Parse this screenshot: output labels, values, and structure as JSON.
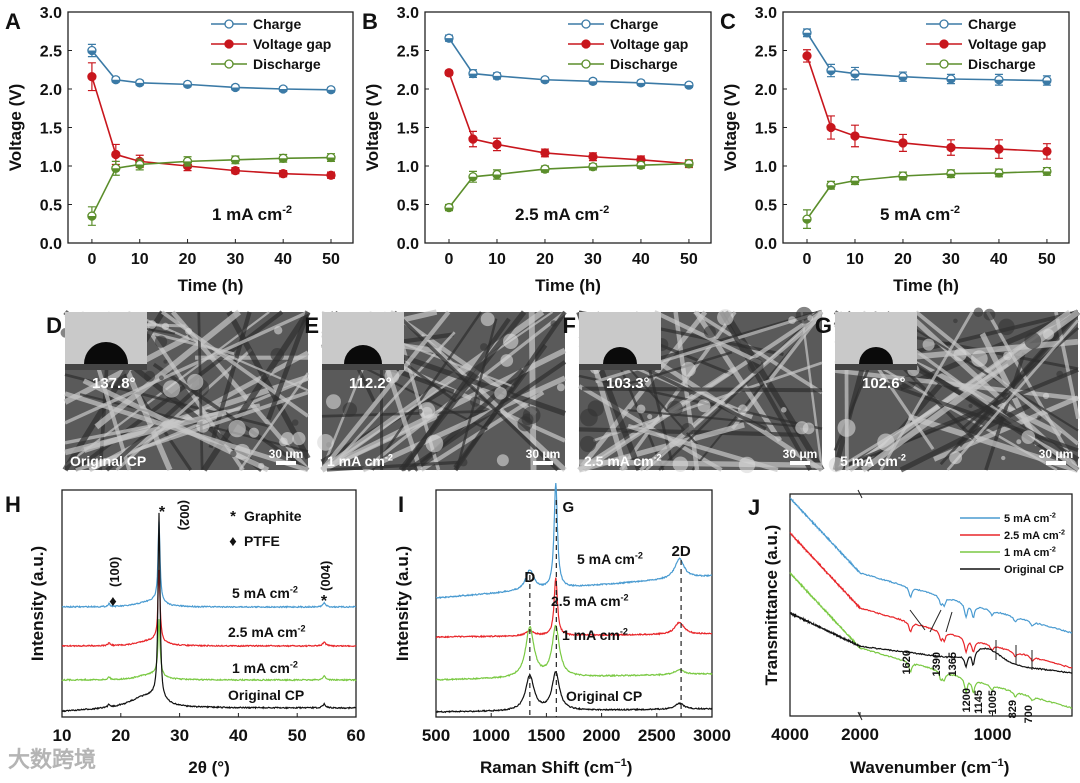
{
  "colors": {
    "charge": "#3b7aa6",
    "gap": "#c8161d",
    "discharge": "#5b8e2b",
    "s5": "#4a9bd1",
    "s25": "#e8262a",
    "s1": "#7ac943",
    "orig": "#111111"
  },
  "chart_data": [
    {
      "panel": "A",
      "type": "line",
      "xlabel": "Time (h)",
      "ylabel": "Voltage (V)",
      "xlim": [
        -5,
        54.6
      ],
      "ylim": [
        0,
        3
      ],
      "xticks": [
        0,
        10,
        20,
        30,
        40,
        50
      ],
      "yticks": [
        "0.0",
        "0.5",
        "1.0",
        "1.5",
        "2.0",
        "2.5",
        "3.0"
      ],
      "condition": "1 mA cm",
      "condition_sup": "-2",
      "x": [
        0,
        5,
        10,
        20,
        30,
        40,
        50
      ],
      "series": [
        {
          "name": "Charge",
          "key": "charge",
          "values": [
            2.5,
            2.12,
            2.08,
            2.06,
            2.02,
            2.0,
            1.99
          ],
          "err": [
            0.08,
            0.03,
            0.03,
            0.03,
            0.03,
            0.03,
            0.03
          ]
        },
        {
          "name": "Voltage gap",
          "key": "gap",
          "values": [
            2.16,
            1.15,
            1.06,
            1.0,
            0.94,
            0.9,
            0.88
          ],
          "err": [
            0.18,
            0.13,
            0.08,
            0.06,
            0.04,
            0.04,
            0.04
          ]
        },
        {
          "name": "Discharge",
          "key": "discharge",
          "values": [
            0.35,
            0.97,
            1.02,
            1.06,
            1.08,
            1.1,
            1.11
          ],
          "err": [
            0.12,
            0.09,
            0.07,
            0.06,
            0.05,
            0.05,
            0.05
          ]
        }
      ],
      "legend": "top-right"
    },
    {
      "panel": "B",
      "type": "line",
      "xlabel": "Time (h)",
      "ylabel": "Voltage (V)",
      "xlim": [
        -5,
        54.6
      ],
      "ylim": [
        0,
        3
      ],
      "xticks": [
        0,
        10,
        20,
        30,
        40,
        50
      ],
      "yticks": [
        "0.0",
        "0.5",
        "1.0",
        "1.5",
        "2.0",
        "2.5",
        "3.0"
      ],
      "condition": "2.5 mA cm",
      "condition_sup": "-2",
      "x": [
        0,
        5,
        10,
        20,
        30,
        40,
        50
      ],
      "series": [
        {
          "name": "Charge",
          "key": "charge",
          "values": [
            2.66,
            2.2,
            2.17,
            2.12,
            2.1,
            2.08,
            2.05
          ],
          "err": [
            0.04,
            0.05,
            0.04,
            0.03,
            0.03,
            0.03,
            0.03
          ]
        },
        {
          "name": "Voltage gap",
          "key": "gap",
          "values": [
            2.21,
            1.35,
            1.28,
            1.17,
            1.12,
            1.08,
            1.03
          ],
          "err": [
            0.03,
            0.1,
            0.08,
            0.05,
            0.05,
            0.05,
            0.05
          ]
        },
        {
          "name": "Discharge",
          "key": "discharge",
          "values": [
            0.46,
            0.86,
            0.89,
            0.96,
            0.99,
            1.01,
            1.03
          ],
          "err": [
            0.04,
            0.07,
            0.06,
            0.04,
            0.04,
            0.04,
            0.04
          ]
        }
      ],
      "legend": "top-right"
    },
    {
      "panel": "C",
      "type": "line",
      "xlabel": "Time (h)",
      "ylabel": "Voltage (V)",
      "xlim": [
        -5,
        54.6
      ],
      "ylim": [
        0,
        3
      ],
      "xticks": [
        0,
        10,
        20,
        30,
        40,
        50
      ],
      "yticks": [
        "0.0",
        "0.5",
        "1.0",
        "1.5",
        "2.0",
        "2.5",
        "3.0"
      ],
      "condition": "5 mA cm",
      "condition_sup": "-2",
      "x": [
        0,
        5,
        10,
        20,
        30,
        40,
        50
      ],
      "series": [
        {
          "name": "Charge",
          "key": "charge",
          "values": [
            2.73,
            2.24,
            2.2,
            2.16,
            2.13,
            2.12,
            2.11
          ],
          "err": [
            0.05,
            0.08,
            0.08,
            0.06,
            0.06,
            0.07,
            0.06
          ]
        },
        {
          "name": "Voltage gap",
          "key": "gap",
          "values": [
            2.43,
            1.5,
            1.39,
            1.3,
            1.24,
            1.22,
            1.19
          ],
          "err": [
            0.08,
            0.15,
            0.14,
            0.11,
            0.1,
            0.12,
            0.1
          ]
        },
        {
          "name": "Discharge",
          "key": "discharge",
          "values": [
            0.31,
            0.75,
            0.81,
            0.87,
            0.9,
            0.91,
            0.93
          ],
          "err": [
            0.12,
            0.05,
            0.05,
            0.05,
            0.05,
            0.05,
            0.05
          ]
        }
      ],
      "legend": "top-right"
    },
    {
      "panel": "H",
      "type": "line",
      "xlabel": "2θ (°)",
      "ylabel": "Intensity (a.u.)",
      "xlim": [
        10,
        60
      ],
      "xticks": [
        10,
        20,
        30,
        40,
        50,
        60
      ],
      "series": [
        {
          "name": "5 mA cm",
          "sup": "-2",
          "key": "s5"
        },
        {
          "name": "2.5 mA cm",
          "sup": "-2",
          "key": "s25"
        },
        {
          "name": "1 mA cm",
          "sup": "-2",
          "key": "s1"
        },
        {
          "name": "Original CP",
          "sup": "",
          "key": "orig"
        }
      ],
      "peaks": [
        {
          "pos": 26.5,
          "label": "(002)",
          "marker": "*"
        },
        {
          "pos": 18.0,
          "label": "(100)",
          "marker": "♦"
        },
        {
          "pos": 54.6,
          "label": "(004)",
          "marker": "*"
        }
      ],
      "legend_items": [
        {
          "marker": "*",
          "label": "Graphite"
        },
        {
          "marker": "♦",
          "label": "PTFE"
        }
      ]
    },
    {
      "panel": "I",
      "type": "line",
      "xlabel": "Raman Shift (cm",
      "xlabel_sup": "−1",
      "xlabel_end": ")",
      "ylabel": "Intensity (a.u.)",
      "xlim": [
        500,
        3000
      ],
      "xticks": [
        500,
        1000,
        1500,
        2000,
        2500,
        3000
      ],
      "series": [
        {
          "name": "5 mA cm",
          "sup": "-2",
          "key": "s5"
        },
        {
          "name": "2.5 mA cm",
          "sup": "-2",
          "key": "s25"
        },
        {
          "name": "1 mA cm",
          "sup": "-2",
          "key": "s1"
        },
        {
          "name": "Original CP",
          "sup": "",
          "key": "orig"
        }
      ],
      "peaks": [
        {
          "pos": 1350,
          "label": "D"
        },
        {
          "pos": 1590,
          "label": "G"
        },
        {
          "pos": 2720,
          "label": "2D"
        }
      ]
    },
    {
      "panel": "J",
      "type": "line",
      "xlabel": "Wavenumber (cm",
      "xlabel_sup": "−1",
      "xlabel_end": ")",
      "ylabel": "Transmittance (a.u.)",
      "xlim": [
        4000,
        400
      ],
      "xticks": [
        4000,
        2000,
        1000
      ],
      "series": [
        {
          "name": "5 mA cm",
          "sup": "-2",
          "key": "s5"
        },
        {
          "name": "2.5 mA cm",
          "sup": "-2",
          "key": "s25"
        },
        {
          "name": "1 mA cm",
          "sup": "-2",
          "key": "s1"
        },
        {
          "name": "Original CP",
          "sup": "",
          "key": "orig"
        }
      ],
      "peaks": [
        1620,
        1390,
        1365,
        1200,
        1145,
        1005,
        829,
        700
      ],
      "legend": "top-right"
    }
  ],
  "images": [
    {
      "panel": "D",
      "angle": "137.8°",
      "label": "Original CP",
      "label_sup": "",
      "scale": "30 μm"
    },
    {
      "panel": "E",
      "angle": "112.2°",
      "label": "1 mA cm",
      "label_sup": "-2",
      "scale": "30 μm"
    },
    {
      "panel": "F",
      "angle": "103.3°",
      "label": "2.5 mA cm",
      "label_sup": "-2",
      "scale": "30 μm"
    },
    {
      "panel": "G",
      "angle": "102.6°",
      "label": "5 mA cm",
      "label_sup": "-2",
      "scale": "30 μm"
    }
  ],
  "watermark": "大数跨境"
}
